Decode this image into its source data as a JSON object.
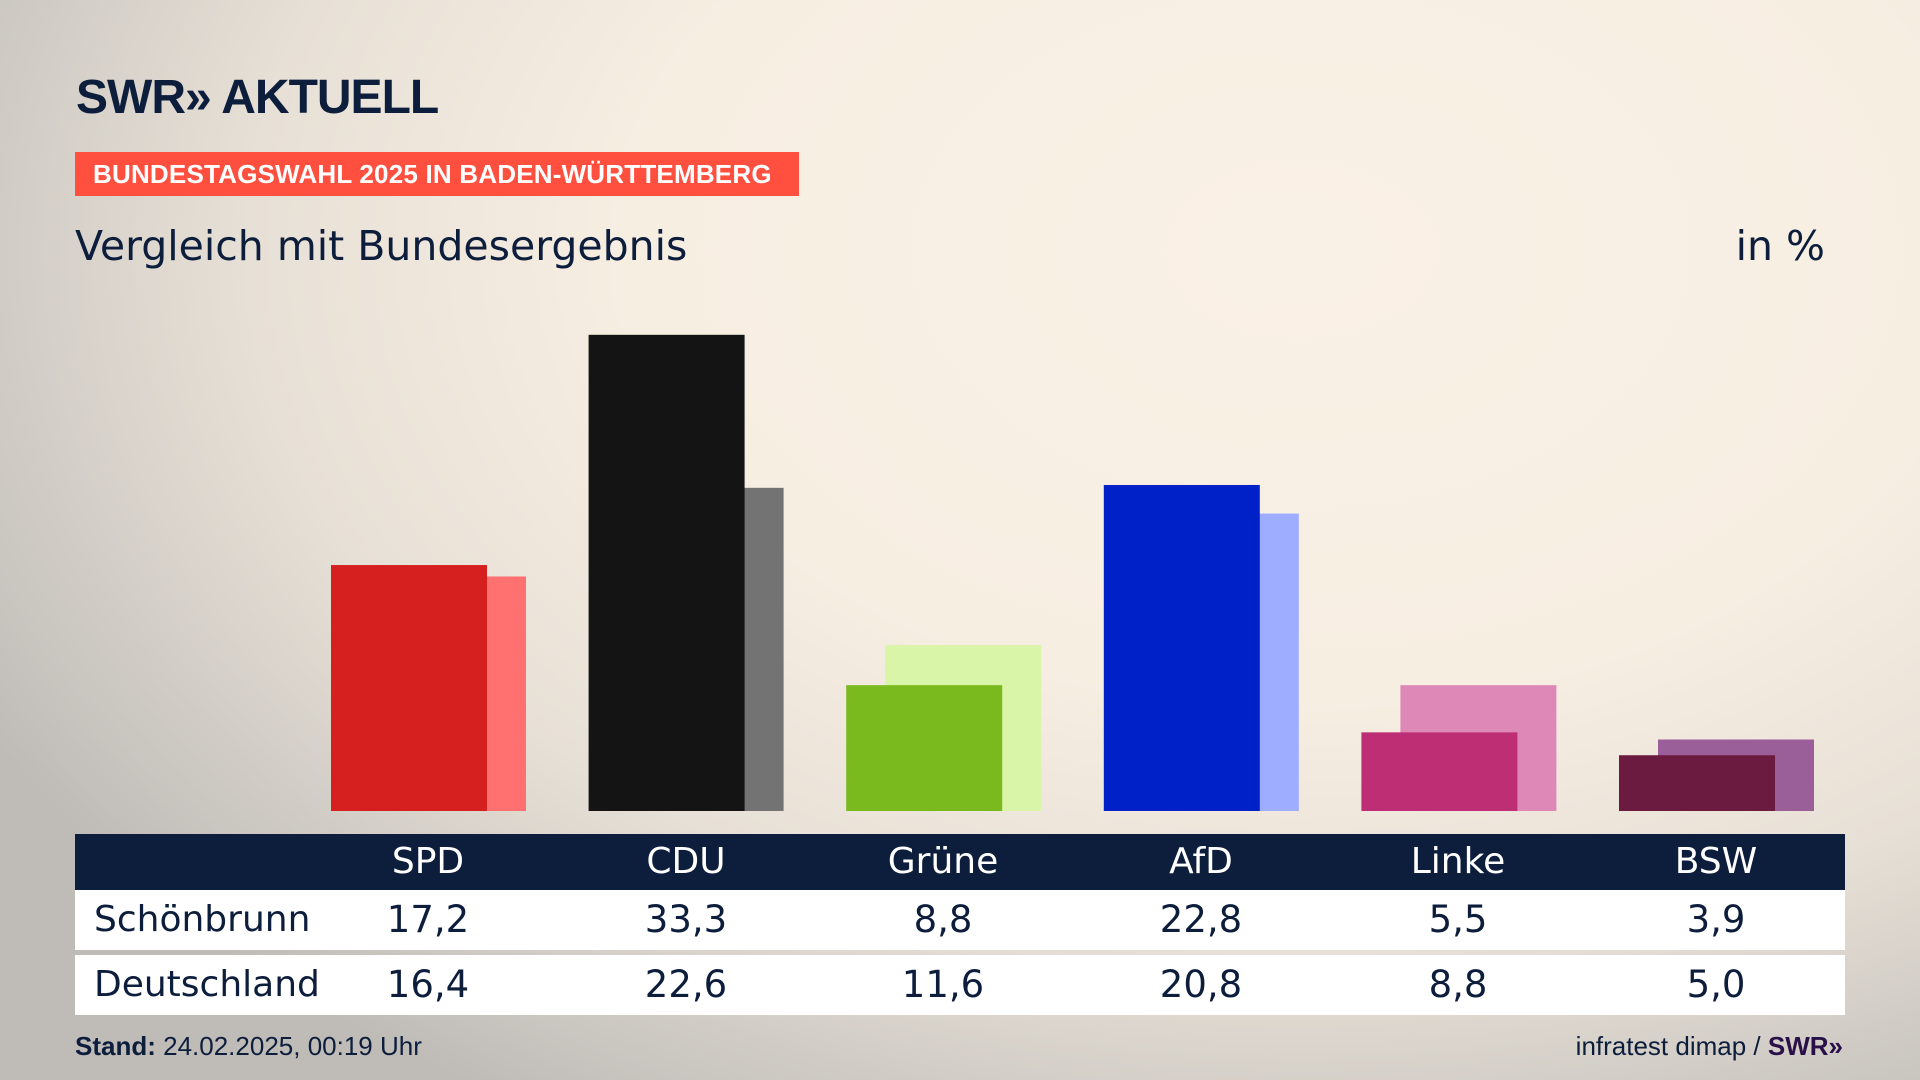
{
  "header": {
    "logo": "SWR» AKTUELL",
    "banner": "BUNDESTAGSWAHL 2025 IN BADEN-WÜRTTEMBERG",
    "title": "Vergleich mit Bundesergebnis",
    "unit": "in %"
  },
  "chart_data": {
    "type": "bar",
    "title": "Vergleich mit Bundesergebnis",
    "ylabel": "in %",
    "ylim": [
      0,
      33.3
    ],
    "categories": [
      "SPD",
      "CDU",
      "Grüne",
      "AfD",
      "Linke",
      "BSW"
    ],
    "series": [
      {
        "name": "Schönbrunn",
        "values": [
          "17,2",
          "33,3",
          "8,8",
          "22,8",
          "5,5",
          "3,9"
        ],
        "numeric": [
          17.2,
          33.3,
          8.8,
          22.8,
          5.5,
          3.9
        ],
        "colors": [
          "#d62020",
          "#141414",
          "#7aba1e",
          "#0021c8",
          "#bd2e74",
          "#6b1a40"
        ]
      },
      {
        "name": "Deutschland",
        "values": [
          "16,4",
          "22,6",
          "11,6",
          "20,8",
          "8,8",
          "5,0"
        ],
        "numeric": [
          16.4,
          22.6,
          11.6,
          20.8,
          8.8,
          5.0
        ],
        "colors": [
          "#ff7070",
          "#737373",
          "#d9f5a8",
          "#9eadff",
          "#de88b8",
          "#9a5e98"
        ]
      }
    ]
  },
  "footer": {
    "stand_label": "Stand:",
    "stand_value": " 24.02.2025, 00:19 Uhr",
    "source": "infratest dimap / ",
    "source_logo": "SWR»"
  }
}
